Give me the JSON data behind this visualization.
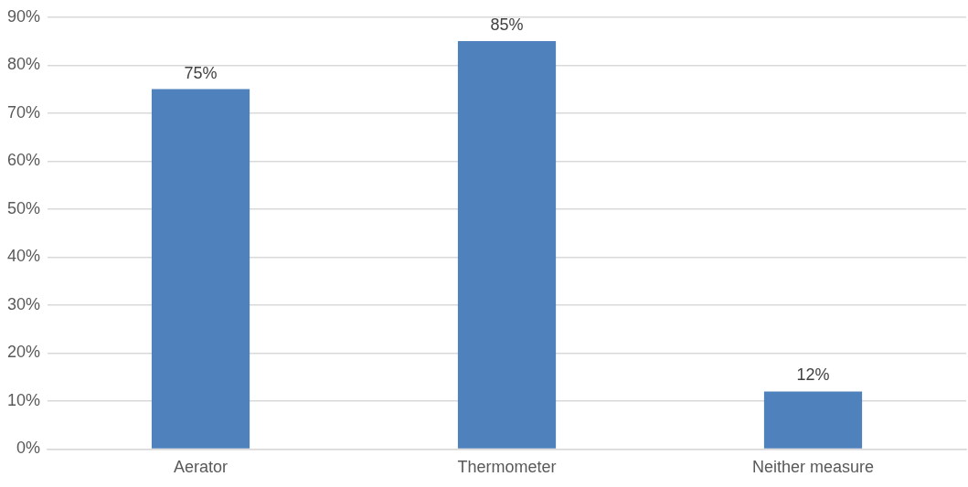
{
  "chart_data": {
    "type": "bar",
    "categories": [
      "Aerator",
      "Thermometer",
      "Neither measure"
    ],
    "values": [
      75,
      85,
      12
    ],
    "value_labels": [
      "75%",
      "85%",
      "12%"
    ],
    "color": "#4f81bd",
    "ylim": [
      0,
      90
    ],
    "yticks": [
      {
        "value": 0,
        "label": "0%"
      },
      {
        "value": 10,
        "label": "10%"
      },
      {
        "value": 20,
        "label": "20%"
      },
      {
        "value": 30,
        "label": "30%"
      },
      {
        "value": 40,
        "label": "40%"
      },
      {
        "value": 50,
        "label": "50%"
      },
      {
        "value": 60,
        "label": "60%"
      },
      {
        "value": 70,
        "label": "70%"
      },
      {
        "value": 80,
        "label": "80%"
      },
      {
        "value": 90,
        "label": "90%"
      }
    ],
    "grid": "y",
    "legend": false
  }
}
